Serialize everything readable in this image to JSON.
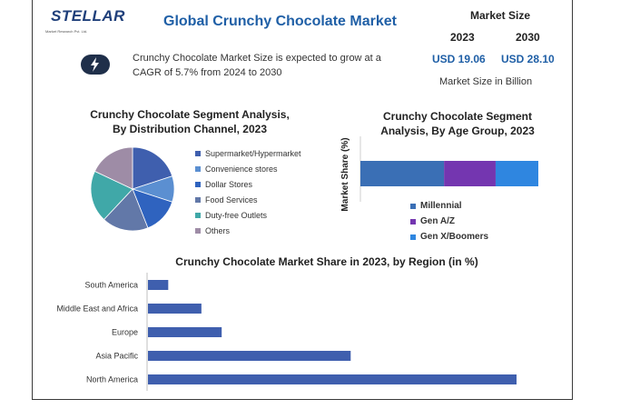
{
  "header": {
    "logo": {
      "text": "STELLAR",
      "subtext": "Market Research Pvt. Ltd."
    },
    "title": "Global Crunchy Chocolate Market",
    "summary": "Crunchy Chocolate Market Size is expected to grow at a CAGR of 5.7% from 2024 to 2030",
    "summary_icon": "lightning-bolt-icon"
  },
  "market_size": {
    "title": "Market Size",
    "year_1": "2023",
    "year_2": "2030",
    "value_1": "USD 19.06",
    "value_2": "USD 28.10",
    "note": "Market Size in Billion"
  },
  "chart_data": [
    {
      "type": "pie",
      "title": "Crunchy Chocolate Segment Analysis, By Distribution Channel, 2023",
      "title_line1": "Crunchy Chocolate Segment Analysis,",
      "title_line2": "By Distribution Channel, 2023",
      "categories": [
        "Supermarket/Hypermarket",
        "Convenience stores",
        "Dollar Stores",
        "Food Services",
        "Duty-free Outlets",
        "Others"
      ],
      "values": [
        20,
        10,
        14,
        18,
        20,
        18
      ],
      "colors": [
        "#3f5fae",
        "#5b8fd1",
        "#2f63bf",
        "#6278a8",
        "#40a8a8",
        "#9e8ca6"
      ],
      "legend": "right"
    },
    {
      "type": "bar",
      "orientation": "horizontal-stacked",
      "title": "Crunchy Chocolate Segment Analysis, By Age Group, 2023",
      "title_line1": "Crunchy Chocolate Segment",
      "title_line2": "Analysis, By Age Group, 2023",
      "ylabel": "Market Share (%)",
      "series": [
        {
          "name": "Millennial",
          "values": [
            47
          ]
        },
        {
          "name": "Gen A/Z",
          "values": [
            29
          ]
        },
        {
          "name": "Gen X/Boomers",
          "values": [
            24
          ]
        }
      ],
      "colors": [
        "#3a6fb5",
        "#7436b0",
        "#2f86e0"
      ],
      "legend": "bottom"
    },
    {
      "type": "bar",
      "orientation": "horizontal",
      "title": "Crunchy Chocolate Market Share in 2023, by Region (in %)",
      "categories": [
        "South America",
        "Middle East and Africa",
        "Europe",
        "Asia Pacific",
        "North America"
      ],
      "values": [
        5.5,
        14.5,
        20,
        55,
        100
      ],
      "color": "#3f5fae",
      "grid": false
    }
  ]
}
